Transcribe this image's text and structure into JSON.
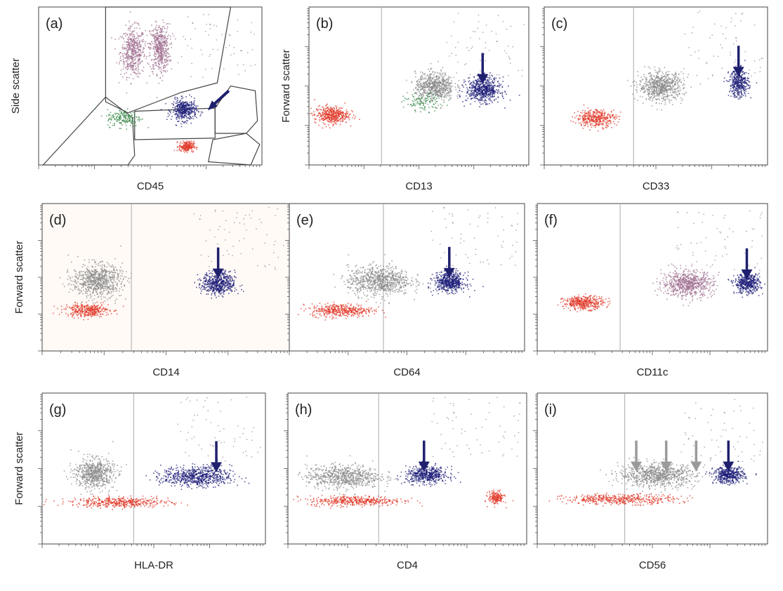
{
  "figure": {
    "y_label_side_scatter": "Side scatter",
    "y_label_forward_scatter": "Forward scatter"
  },
  "colors": {
    "monocyte": "#1f1f7a",
    "granulocyte": "#8a8a8a",
    "lymphocyte": "#e03a2a",
    "early_myeloid": "#3a8a4a",
    "dim_granulocyte": "#a07090",
    "arrow": "#1f1f6e",
    "grey_arrow": "#9a9a9a"
  },
  "chart_data": [
    {
      "id": "a",
      "panel_label": "(a)",
      "type": "scatter",
      "xlabel": "CD45",
      "ylabel": "Side scatter",
      "scale": "log",
      "populations": [
        {
          "name": "granulocytes",
          "color": "dim_granulocyte",
          "center": [
            0.42,
            0.72
          ],
          "spread": [
            0.05,
            0.14
          ],
          "n": 500
        },
        {
          "name": "granulocytes-b",
          "color": "dim_granulocyte",
          "center": [
            0.54,
            0.74
          ],
          "spread": [
            0.04,
            0.14
          ],
          "n": 500
        },
        {
          "name": "monocytes",
          "color": "monocyte",
          "center": [
            0.65,
            0.35
          ],
          "spread": [
            0.05,
            0.06
          ],
          "n": 420
        },
        {
          "name": "lymphocytes",
          "color": "lymphocyte",
          "center": [
            0.66,
            0.12
          ],
          "spread": [
            0.03,
            0.03
          ],
          "n": 220
        },
        {
          "name": "early-myeloid",
          "color": "early_myeloid",
          "center": [
            0.38,
            0.3
          ],
          "spread": [
            0.07,
            0.05
          ],
          "n": 180
        }
      ],
      "arrows": [
        {
          "color": "arrow",
          "angle": "diagonal"
        }
      ]
    },
    {
      "id": "b",
      "panel_label": "(b)",
      "type": "scatter",
      "xlabel": "CD13",
      "ylabel": "Forward scatter",
      "scale": "log",
      "populations": [
        {
          "name": "lymphocytes",
          "color": "lymphocyte",
          "center": [
            0.1,
            0.32
          ],
          "spread": [
            0.07,
            0.05
          ],
          "n": 420
        },
        {
          "name": "granulocytes",
          "color": "granulocyte",
          "center": [
            0.57,
            0.5
          ],
          "spread": [
            0.08,
            0.08
          ],
          "n": 650
        },
        {
          "name": "monocytes",
          "color": "monocyte",
          "center": [
            0.79,
            0.48
          ],
          "spread": [
            0.07,
            0.07
          ],
          "n": 600
        },
        {
          "name": "early-myeloid",
          "color": "early_myeloid",
          "center": [
            0.52,
            0.4
          ],
          "spread": [
            0.08,
            0.05
          ],
          "n": 120
        }
      ],
      "arrows": [
        {
          "color": "arrow",
          "x": 0.79,
          "angle": "down"
        }
      ]
    },
    {
      "id": "c",
      "panel_label": "(c)",
      "type": "scatter",
      "xlabel": "CD33",
      "ylabel": "",
      "scale": "log",
      "populations": [
        {
          "name": "lymphocytes",
          "color": "lymphocyte",
          "center": [
            0.23,
            0.3
          ],
          "spread": [
            0.08,
            0.05
          ],
          "n": 380
        },
        {
          "name": "granulocytes",
          "color": "granulocyte",
          "center": [
            0.52,
            0.5
          ],
          "spread": [
            0.09,
            0.08
          ],
          "n": 700
        },
        {
          "name": "monocytes",
          "color": "monocyte",
          "center": [
            0.87,
            0.52
          ],
          "spread": [
            0.04,
            0.08
          ],
          "n": 380
        }
      ],
      "arrows": [
        {
          "color": "arrow",
          "x": 0.87,
          "angle": "down"
        }
      ]
    },
    {
      "id": "d",
      "panel_label": "(d)",
      "type": "scatter",
      "xlabel": "CD14",
      "ylabel": "Forward scatter",
      "scale": "log",
      "populations": [
        {
          "name": "lymphocytes",
          "color": "lymphocyte",
          "center": [
            0.18,
            0.28
          ],
          "spread": [
            0.08,
            0.04
          ],
          "n": 350
        },
        {
          "name": "granulocytes",
          "color": "granulocyte",
          "center": [
            0.22,
            0.48
          ],
          "spread": [
            0.09,
            0.1
          ],
          "n": 750
        },
        {
          "name": "monocytes",
          "color": "monocyte",
          "center": [
            0.71,
            0.46
          ],
          "spread": [
            0.06,
            0.07
          ],
          "n": 550
        }
      ],
      "arrows": [
        {
          "color": "arrow",
          "x": 0.71,
          "angle": "down"
        }
      ]
    },
    {
      "id": "e",
      "panel_label": "(e)",
      "type": "scatter",
      "xlabel": "CD64",
      "ylabel": "",
      "scale": "log",
      "populations": [
        {
          "name": "lymphocytes",
          "color": "lymphocyte",
          "center": [
            0.22,
            0.28
          ],
          "spread": [
            0.12,
            0.04
          ],
          "n": 420
        },
        {
          "name": "granulocytes",
          "color": "granulocyte",
          "center": [
            0.38,
            0.48
          ],
          "spread": [
            0.12,
            0.09
          ],
          "n": 800
        },
        {
          "name": "monocytes",
          "color": "monocyte",
          "center": [
            0.68,
            0.47
          ],
          "spread": [
            0.06,
            0.06
          ],
          "n": 550
        }
      ],
      "arrows": [
        {
          "color": "arrow",
          "x": 0.68,
          "angle": "down"
        }
      ]
    },
    {
      "id": "f",
      "panel_label": "(f)",
      "type": "scatter",
      "xlabel": "CD11c",
      "ylabel": "",
      "scale": "log",
      "populations": [
        {
          "name": "lymphocytes",
          "color": "lymphocyte",
          "center": [
            0.2,
            0.33
          ],
          "spread": [
            0.08,
            0.04
          ],
          "n": 400
        },
        {
          "name": "granulocytes",
          "color": "dim_granulocyte",
          "center": [
            0.65,
            0.46
          ],
          "spread": [
            0.1,
            0.08
          ],
          "n": 700
        },
        {
          "name": "monocytes",
          "color": "monocyte",
          "center": [
            0.91,
            0.46
          ],
          "spread": [
            0.05,
            0.06
          ],
          "n": 450
        }
      ],
      "arrows": [
        {
          "color": "arrow",
          "x": 0.91,
          "angle": "down"
        }
      ]
    },
    {
      "id": "g",
      "panel_label": "(g)",
      "type": "scatter",
      "xlabel": "HLA-DR",
      "ylabel": "Forward scatter",
      "scale": "log",
      "populations": [
        {
          "name": "lymphocytes",
          "color": "lymphocyte",
          "center": [
            0.35,
            0.28
          ],
          "spread": [
            0.2,
            0.03
          ],
          "n": 450
        },
        {
          "name": "granulocytes",
          "color": "granulocyte",
          "center": [
            0.23,
            0.47
          ],
          "spread": [
            0.08,
            0.09
          ],
          "n": 650
        },
        {
          "name": "monocytes",
          "color": "monocyte",
          "center": [
            0.69,
            0.45
          ],
          "spread": [
            0.14,
            0.06
          ],
          "n": 700
        }
      ],
      "arrows": [
        {
          "color": "arrow",
          "x": 0.78,
          "angle": "down"
        }
      ]
    },
    {
      "id": "h",
      "panel_label": "(h)",
      "type": "scatter",
      "xlabel": "CD4",
      "ylabel": "",
      "scale": "log",
      "populations": [
        {
          "name": "lymphocytes",
          "color": "lymphocyte",
          "center": [
            0.28,
            0.29
          ],
          "spread": [
            0.18,
            0.03
          ],
          "n": 420
        },
        {
          "name": "granulocytes",
          "color": "granulocyte",
          "center": [
            0.23,
            0.45
          ],
          "spread": [
            0.14,
            0.07
          ],
          "n": 700
        },
        {
          "name": "monocytes",
          "color": "monocyte",
          "center": [
            0.58,
            0.46
          ],
          "spread": [
            0.08,
            0.05
          ],
          "n": 500
        },
        {
          "name": "t-helper",
          "color": "lymphocyte",
          "center": [
            0.87,
            0.31
          ],
          "spread": [
            0.03,
            0.04
          ],
          "n": 180
        }
      ],
      "arrows": [
        {
          "color": "arrow",
          "x": 0.57,
          "angle": "down"
        }
      ]
    },
    {
      "id": "i",
      "panel_label": "(i)",
      "type": "scatter",
      "xlabel": "CD56",
      "ylabel": "",
      "scale": "log",
      "populations": [
        {
          "name": "lymphocytes",
          "color": "lymphocyte",
          "center": [
            0.36,
            0.3
          ],
          "spread": [
            0.22,
            0.03
          ],
          "n": 450
        },
        {
          "name": "granulocytes",
          "color": "granulocyte",
          "center": [
            0.52,
            0.46
          ],
          "spread": [
            0.15,
            0.07
          ],
          "n": 800
        },
        {
          "name": "monocytes",
          "color": "monocyte",
          "center": [
            0.83,
            0.46
          ],
          "spread": [
            0.06,
            0.05
          ],
          "n": 450
        }
      ],
      "arrows": [
        {
          "color": "grey_arrow",
          "x": 0.43,
          "angle": "down"
        },
        {
          "color": "grey_arrow",
          "x": 0.56,
          "angle": "down"
        },
        {
          "color": "grey_arrow",
          "x": 0.69,
          "angle": "down"
        },
        {
          "color": "arrow",
          "x": 0.83,
          "angle": "down"
        }
      ]
    }
  ]
}
